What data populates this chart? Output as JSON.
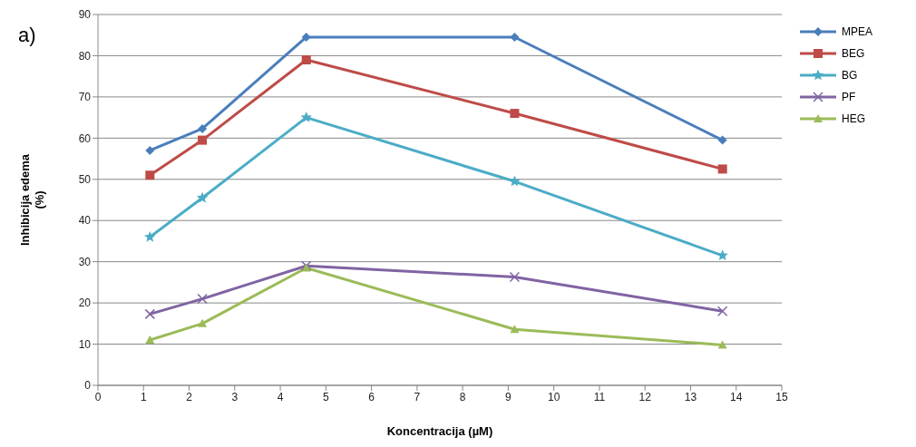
{
  "chart_data": {
    "type": "line",
    "xlabel": "Koncentracija (µM)",
    "ylabel": "Inhibicija edema\n(%)",
    "annotations": [
      "a)"
    ],
    "x": [
      1.14,
      2.29,
      4.57,
      9.14,
      13.7
    ],
    "series": [
      {
        "name": "MPEA",
        "color": "#4a7ebb",
        "marker": "diamond",
        "values": [
          57,
          62.3,
          84.5,
          84.5,
          59.5
        ]
      },
      {
        "name": "BEG",
        "color": "#be4b48",
        "marker": "square",
        "values": [
          51,
          59.5,
          79,
          66,
          52.5
        ]
      },
      {
        "name": "BG",
        "color": "#4bacc6",
        "marker": "star",
        "values": [
          36,
          45.5,
          65,
          49.5,
          31.5
        ]
      },
      {
        "name": "PF",
        "color": "#8064a2",
        "marker": "cross",
        "values": [
          17.3,
          21,
          29,
          26.3,
          18
        ]
      },
      {
        "name": "HEG",
        "color": "#9bbb59",
        "marker": "triangle",
        "values": [
          11,
          15,
          28.5,
          13.6,
          9.8
        ]
      }
    ],
    "xlim": [
      0,
      15
    ],
    "xticks": [
      0,
      1,
      2,
      3,
      4,
      5,
      6,
      7,
      8,
      9,
      10,
      11,
      12,
      13,
      14,
      15
    ],
    "ylim": [
      0,
      90
    ],
    "yticks": [
      0,
      10,
      20,
      30,
      40,
      50,
      60,
      70,
      80,
      90
    ],
    "grid": "y",
    "legend": "right",
    "line_style": "solid"
  }
}
